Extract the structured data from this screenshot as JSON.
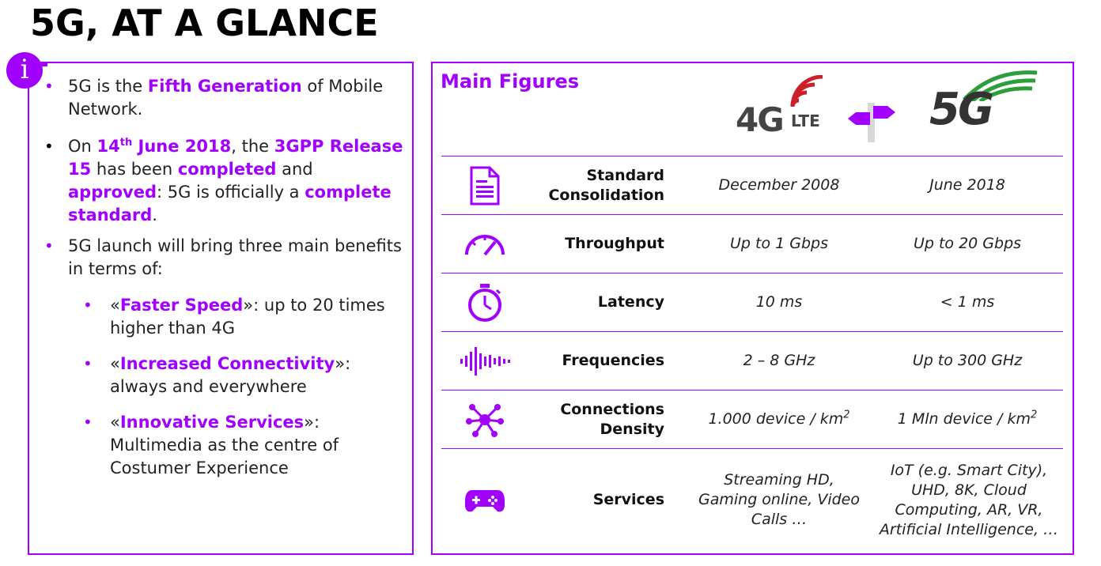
{
  "title": "5G, AT A GLANCE",
  "info_icon": "info-icon",
  "left": {
    "b1": {
      "pre": "5G is the ",
      "hl": "Fifth Generation",
      "post": " of Mobile Network."
    },
    "b2": {
      "t1": "On ",
      "h1": "14",
      "sup": "th",
      "h1b": " June 2018",
      "t2": ", the ",
      "h2": "3GPP Release 15",
      "t3": " has been ",
      "h3": "completed",
      "t4": " and ",
      "h4": "approved",
      "t5": ": 5G is officially a ",
      "h5": "complete standard",
      "t6": "."
    },
    "b3": "5G launch will bring three main benefits in terms of:",
    "subs": [
      {
        "open": "«",
        "hl": "Faster Speed",
        "close": "»: up to 20 times higher than 4G"
      },
      {
        "open": "«",
        "hl": "Increased Connectivity",
        "close": "»: always and everywhere"
      },
      {
        "open": "«",
        "hl": "Innovative Services",
        "close": "»: Multimedia as the centre of Costumer Experience"
      }
    ]
  },
  "right": {
    "title": "Main Figures",
    "logo_4g": {
      "big": "4G",
      "small": "LTE"
    },
    "logo_5g": {
      "big": "5G"
    },
    "rows": [
      {
        "icon": "document-icon",
        "label": "Standard Consolidation",
        "v1": "December 2008",
        "v2": "June 2018"
      },
      {
        "icon": "speedometer-icon",
        "label": "Throughput",
        "v1": "Up to 1 Gbps",
        "v2": "Up to 20 Gbps"
      },
      {
        "icon": "stopwatch-icon",
        "label": "Latency",
        "v1": "10 ms",
        "v2": "< 1 ms"
      },
      {
        "icon": "sound-wave-icon",
        "label": "Frequencies",
        "v1": "2 – 8 GHz",
        "v2": "Up to 300 GHz"
      },
      {
        "icon": "network-hub-icon",
        "label": "Connections Density",
        "v1": "1.000 device / km",
        "v1_sup": "2",
        "v2": "1 Mln device / km",
        "v2_sup": "2"
      },
      {
        "icon": "gamepad-icon",
        "label": "Services",
        "v1": "Streaming HD, Gaming online, Video Calls …",
        "v2": "IoT (e.g. Smart City), UHD, 8K, Cloud Computing, AR, VR, Artificial Intelligence, …"
      }
    ]
  },
  "colors": {
    "accent": "#a100ff",
    "lte_red": "#cc1f2a",
    "g5_green": "#2e9e3a"
  }
}
